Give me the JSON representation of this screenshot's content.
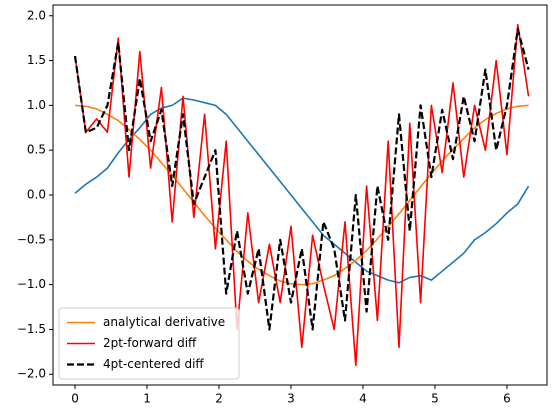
{
  "chart_data": {
    "type": "line",
    "x": [
      0,
      0.15,
      0.3,
      0.45,
      0.6,
      0.75,
      0.9,
      1.05,
      1.2,
      1.35,
      1.5,
      1.65,
      1.8,
      1.95,
      2.1,
      2.25,
      2.4,
      2.55,
      2.7,
      2.85,
      3.0,
      3.15,
      3.3,
      3.45,
      3.6,
      3.75,
      3.9,
      4.05,
      4.2,
      4.35,
      4.5,
      4.65,
      4.8,
      4.95,
      5.1,
      5.25,
      5.4,
      5.55,
      5.7,
      5.85,
      6.0,
      6.15,
      6.3
    ],
    "series": [
      {
        "color": "#1f77b4",
        "values": [
          0.02,
          0.12,
          0.2,
          0.3,
          0.47,
          0.62,
          0.75,
          0.9,
          0.97,
          1.0,
          1.08,
          1.06,
          1.03,
          1.0,
          0.9,
          0.75,
          0.6,
          0.45,
          0.3,
          0.15,
          0.0,
          -0.15,
          -0.3,
          -0.45,
          -0.55,
          -0.65,
          -0.75,
          -0.85,
          -0.9,
          -0.95,
          -0.98,
          -0.92,
          -0.9,
          -0.95,
          -0.85,
          -0.75,
          -0.65,
          -0.5,
          -0.42,
          -0.32,
          -0.2,
          -0.1,
          0.1
        ]
      },
      {
        "name": "analytical derivative",
        "color": "#ff7f0e",
        "values": [
          1,
          0.99,
          0.96,
          0.9,
          0.83,
          0.73,
          0.62,
          0.5,
          0.36,
          0.22,
          0.07,
          -0.08,
          -0.23,
          -0.37,
          -0.5,
          -0.63,
          -0.74,
          -0.83,
          -0.9,
          -0.96,
          -0.99,
          -1.0,
          -0.99,
          -0.95,
          -0.9,
          -0.82,
          -0.73,
          -0.62,
          -0.49,
          -0.35,
          -0.21,
          -0.06,
          0.09,
          0.24,
          0.38,
          0.51,
          0.63,
          0.75,
          0.84,
          0.91,
          0.96,
          0.99,
          1.0
        ]
      },
      {
        "name": "2pt-forward diff",
        "color": "#ff0000",
        "values": [
          1.55,
          0.7,
          0.85,
          0.7,
          1.75,
          0.2,
          1.6,
          0.3,
          1.2,
          -0.3,
          1.1,
          -0.25,
          0.9,
          -0.6,
          0.6,
          -1.5,
          -0.2,
          -1.2,
          -0.55,
          -1.2,
          -0.35,
          -1.7,
          -0.45,
          -1.0,
          -1.5,
          -0.3,
          -1.9,
          0.1,
          -1.4,
          0.6,
          -1.7,
          0.8,
          -1.2,
          1.0,
          0.25,
          1.25,
          0.2,
          1.0,
          0.5,
          1.5,
          0.45,
          1.9,
          1.1
        ]
      },
      {
        "name": "4pt-centered diff",
        "color": "#000000",
        "dashed": true,
        "values": [
          1.55,
          0.7,
          0.75,
          1.0,
          1.7,
          0.5,
          1.3,
          0.6,
          0.95,
          0.1,
          0.9,
          -0.1,
          0.2,
          0.5,
          -1.1,
          -0.4,
          -1.1,
          -0.6,
          -1.5,
          -0.5,
          -1.2,
          -0.6,
          -1.5,
          -0.3,
          -0.6,
          -1.4,
          0.0,
          -1.3,
          0.1,
          -0.5,
          0.9,
          -0.4,
          1.0,
          0.2,
          0.95,
          0.4,
          1.1,
          0.6,
          1.4,
          0.5,
          1.0,
          1.85,
          1.4
        ]
      }
    ],
    "xlim": [
      -0.306,
      6.556
    ],
    "xticks": [
      0,
      1,
      2,
      3,
      4,
      5,
      6
    ],
    "ylim": [
      -2.12,
      2.12
    ],
    "yticks": [
      {
        "value": -2,
        "label": "−2.0"
      },
      {
        "value": -1.5,
        "label": "−1.5"
      },
      {
        "value": -1,
        "label": "−1.0"
      },
      {
        "value": -0.5,
        "label": "−0.5"
      },
      {
        "value": 0,
        "label": "0.0"
      },
      {
        "value": 0.5,
        "label": "0.5"
      },
      {
        "value": 1,
        "label": "1.0"
      },
      {
        "value": 1.5,
        "label": "1.5"
      },
      {
        "value": 2,
        "label": "2.0"
      }
    ],
    "legend": "lower left"
  }
}
